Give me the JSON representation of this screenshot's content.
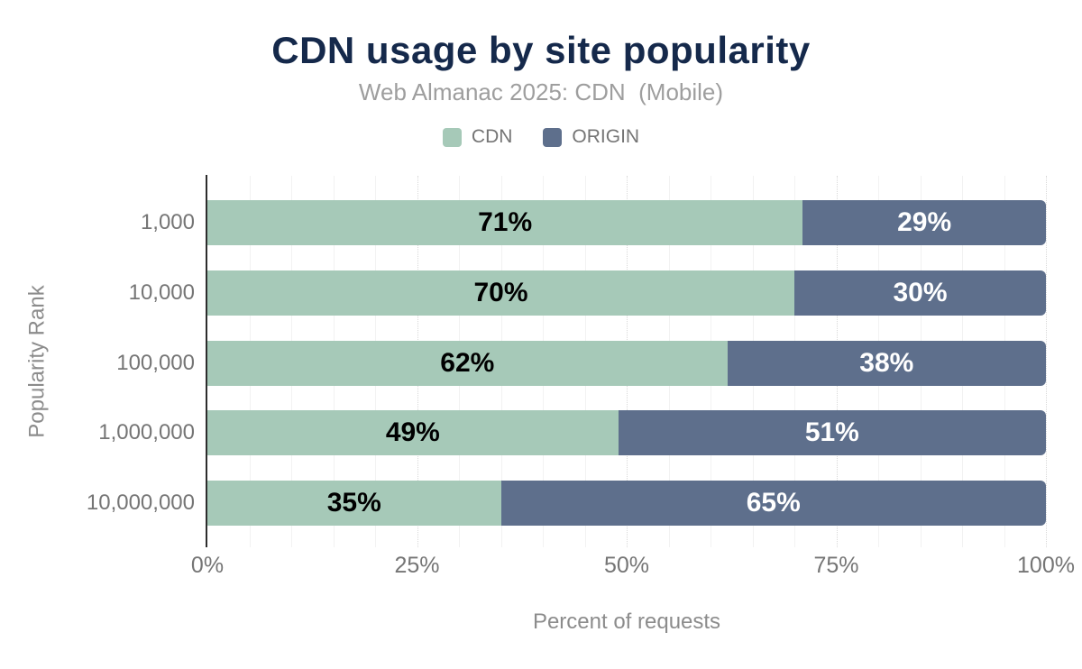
{
  "title": "CDN usage by site popularity",
  "subtitle": "Web Almanac 2025: CDN  (Mobile)",
  "legend": [
    {
      "label": "CDN",
      "color": "#a6c9b8"
    },
    {
      "label": "ORIGIN",
      "color": "#5e6f8c"
    }
  ],
  "colors": {
    "title": "#15294b",
    "subtitle": "#9e9e9e",
    "axis_text": "#757575",
    "axis_line": "#2d2d2d",
    "cdn": "#a6c9b8",
    "origin": "#5e6f8c"
  },
  "chart_data": {
    "type": "bar",
    "orientation": "horizontal",
    "stacked": true,
    "title": "CDN usage by site popularity",
    "subtitle": "Web Almanac 2025: CDN  (Mobile)",
    "categories": [
      "1,000",
      "10,000",
      "100,000",
      "1,000,000",
      "10,000,000"
    ],
    "series": [
      {
        "name": "CDN",
        "color": "#a6c9b8",
        "label_color": "#000000",
        "values": [
          71,
          70,
          62,
          49,
          35
        ]
      },
      {
        "name": "ORIGIN",
        "color": "#5e6f8c",
        "label_color": "#ffffff",
        "values": [
          29,
          30,
          38,
          51,
          65
        ]
      }
    ],
    "data_label_suffix": "%",
    "xlabel": "Percent of requests",
    "ylabel": "Popularity Rank",
    "xlim": [
      0,
      100
    ],
    "x_ticks": [
      {
        "value": 0,
        "label": "0%"
      },
      {
        "value": 25,
        "label": "25%"
      },
      {
        "value": 50,
        "label": "50%"
      },
      {
        "value": 75,
        "label": "75%"
      },
      {
        "value": 100,
        "label": "100%"
      }
    ],
    "grid": {
      "minor_step": 5,
      "major_step": 25,
      "minor_style": "solid",
      "major_style": "dotted"
    },
    "legend_position": "top"
  }
}
